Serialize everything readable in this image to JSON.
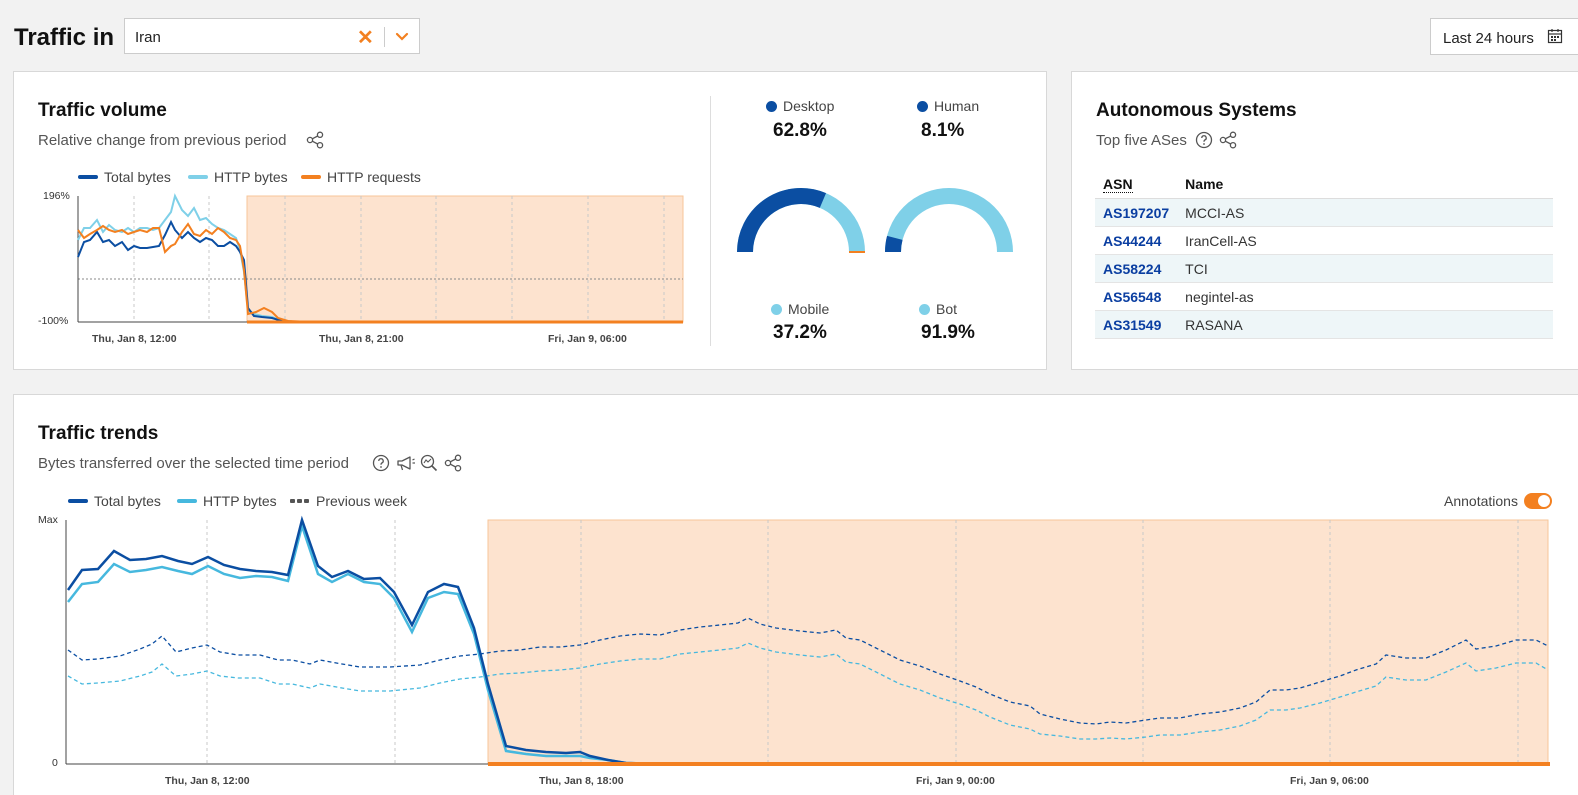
{
  "header": {
    "title": "Traffic in",
    "country": "Iran",
    "date_range": "Last 24 hours"
  },
  "traffic_volume": {
    "title": "Traffic volume",
    "subtitle": "Relative change from previous period",
    "legend": [
      "Total bytes",
      "HTTP bytes",
      "HTTP requests"
    ],
    "y_top": "196%",
    "y_bottom": "-100%",
    "x_ticks": [
      "Thu, Jan 8, 12:00",
      "Thu, Jan 8, 21:00",
      "Fri, Jan 9, 06:00"
    ]
  },
  "device_split": {
    "desktop_label": "Desktop",
    "desktop_pct": "62.8%",
    "desktop_value": 62.8,
    "mobile_label": "Mobile",
    "mobile_pct": "37.2%",
    "mobile_value": 37.2
  },
  "human_split": {
    "human_label": "Human",
    "human_pct": "8.1%",
    "human_value": 8.1,
    "bot_label": "Bot",
    "bot_pct": "91.9%",
    "bot_value": 91.9
  },
  "autonomous_systems": {
    "title": "Autonomous Systems",
    "subtitle": "Top five ASes",
    "col_asn": "ASN",
    "col_name": "Name",
    "rows": [
      {
        "asn": "AS197207",
        "name": "MCCI-AS"
      },
      {
        "asn": "AS44244",
        "name": "IranCell-AS"
      },
      {
        "asn": "AS58224",
        "name": "TCI"
      },
      {
        "asn": "AS56548",
        "name": "negintel-as"
      },
      {
        "asn": "AS31549",
        "name": "RASANA"
      }
    ]
  },
  "traffic_trends": {
    "title": "Traffic trends",
    "subtitle": "Bytes transferred over the selected time period",
    "legend": [
      "Total bytes",
      "HTTP bytes",
      "Previous week"
    ],
    "annotations_label": "Annotations",
    "y_max": "Max",
    "y_zero": "0",
    "x_ticks": [
      "Thu, Jan 8, 12:00",
      "Thu, Jan 8, 18:00",
      "Fri, Jan 9, 00:00",
      "Fri, Jan 9, 06:00"
    ]
  },
  "colors": {
    "total_bytes": "#0b4ea2",
    "http_bytes": "#46b8de",
    "http_requests": "#f38020",
    "previous_week": "#555555",
    "outage_fill": "#fde3cf",
    "accent": "#f38020"
  },
  "icons": [
    "clear-icon",
    "chevron-down-icon",
    "calendar-icon",
    "share-icon",
    "help-icon",
    "megaphone-icon",
    "zoom-icon"
  ]
}
